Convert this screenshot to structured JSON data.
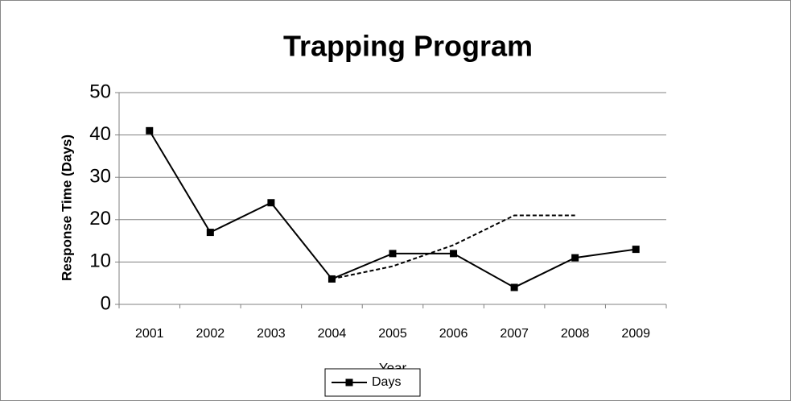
{
  "chart_data": {
    "type": "line",
    "title": "Trapping Program",
    "x_label": "Year",
    "y_label": "Response Time (Days)",
    "categories": [
      "2001",
      "2002",
      "2003",
      "2004",
      "2005",
      "2006",
      "2007",
      "2008",
      "2009"
    ],
    "series": [
      {
        "name": "Days",
        "color": "#000000",
        "values": [
          41,
          17,
          24,
          6,
          12,
          12,
          4,
          11,
          13
        ]
      },
      {
        "color": "#000000",
        "dashed": true,
        "values": [
          null,
          null,
          null,
          6,
          9,
          14,
          21,
          21,
          null
        ]
      }
    ],
    "ylim": [
      0,
      50
    ],
    "yticks": [
      0,
      10,
      20,
      30,
      40,
      50
    ],
    "grid": true,
    "legend": "bottom"
  }
}
